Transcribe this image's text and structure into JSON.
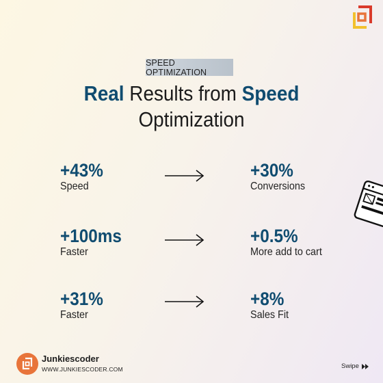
{
  "badge": "SPEED OPTIMIZATION",
  "headline": {
    "w1": "Real",
    "w2": " Results from ",
    "w3": "Speed",
    "line2": "Optimization"
  },
  "rows": [
    {
      "left_value": "+43%",
      "left_label": "Speed",
      "right_value": "+30%",
      "right_label": "Conversions"
    },
    {
      "left_value": "+100ms",
      "left_label": "Faster",
      "right_value": "+0.5%",
      "right_label": "More add to cart"
    },
    {
      "left_value": "+31%",
      "left_label": "Faster",
      "right_value": "+8%",
      "right_label": "Sales Fit"
    }
  ],
  "brand": {
    "name": "Junkiescoder",
    "url": "WWW.JUNKIESCODER.COM"
  },
  "swipe": {
    "label": "Swipe"
  },
  "colors": {
    "accent": "#104c70",
    "logo_orange": "#e8743a",
    "logo_red": "#d93a2b",
    "logo_yellow": "#f2c12e"
  },
  "icons": {
    "arrow": "arrow-right-icon",
    "swipe": "fast-forward-icon",
    "brand": "junkiescoder-logo"
  }
}
